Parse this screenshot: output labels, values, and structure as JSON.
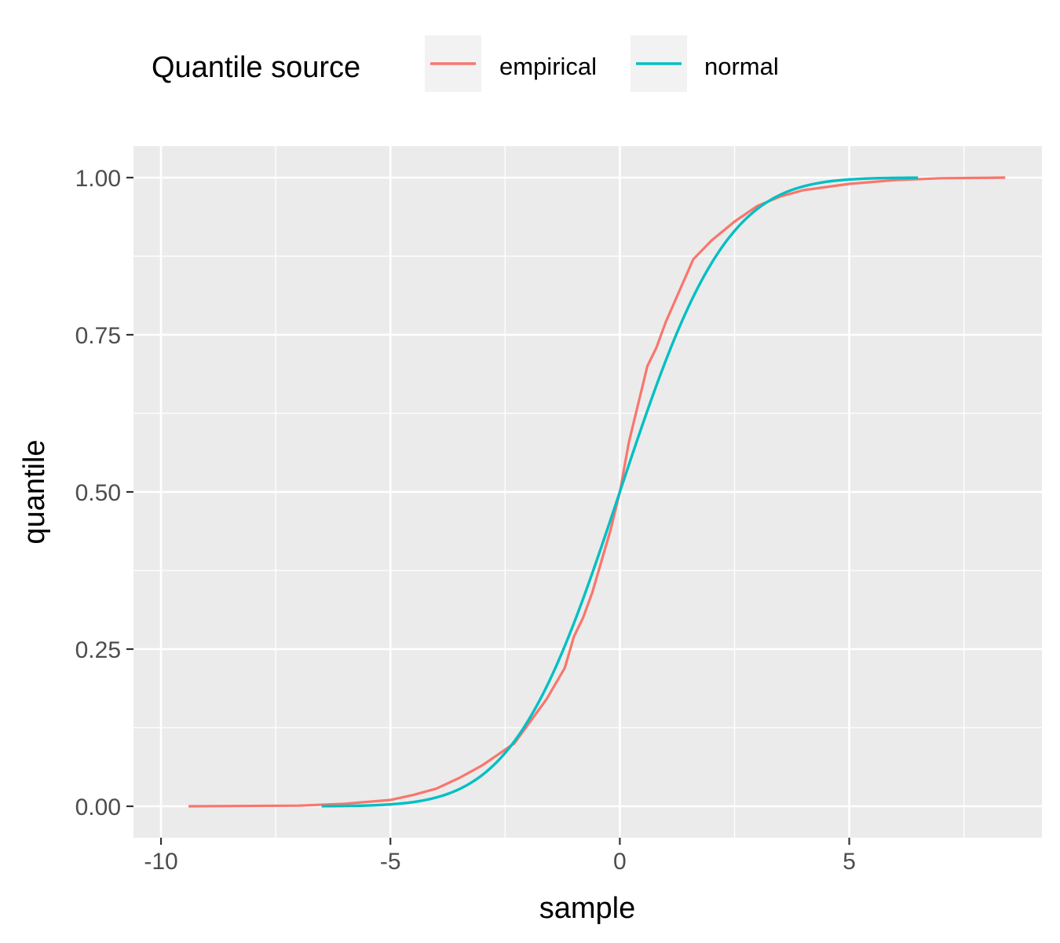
{
  "chart_data": {
    "type": "line",
    "title": "",
    "xlabel": "sample",
    "ylabel": "quantile",
    "xlim": [
      -10.6,
      9.2
    ],
    "ylim": [
      -0.05,
      1.05
    ],
    "x_ticks": [
      -10,
      -5,
      0,
      5
    ],
    "x_tick_labels": [
      "-10",
      "-5",
      "0",
      "5"
    ],
    "y_ticks": [
      0,
      0.25,
      0.5,
      0.75,
      1.0
    ],
    "y_tick_labels": [
      "0.00",
      "0.25",
      "0.50",
      "0.75",
      "1.00"
    ],
    "grid": true,
    "legend": {
      "title": "Quantile source",
      "position": "top",
      "entries": [
        "empirical",
        "normal"
      ]
    },
    "series": [
      {
        "name": "empirical",
        "color": "#F8766D",
        "x": [
          -9.4,
          -7.0,
          -6.0,
          -5.0,
          -4.5,
          -4.0,
          -3.5,
          -3.0,
          -2.6,
          -2.3,
          -2.0,
          -1.6,
          -1.2,
          -1.0,
          -0.8,
          -0.6,
          -0.4,
          -0.2,
          0.0,
          0.2,
          0.4,
          0.6,
          0.8,
          1.0,
          1.3,
          1.6,
          2.0,
          2.5,
          3.0,
          3.5,
          4.0,
          5.0,
          6.0,
          7.0,
          8.4
        ],
        "y": [
          0.0,
          0.001,
          0.004,
          0.01,
          0.018,
          0.028,
          0.045,
          0.065,
          0.085,
          0.1,
          0.13,
          0.17,
          0.22,
          0.27,
          0.3,
          0.34,
          0.39,
          0.44,
          0.5,
          0.58,
          0.64,
          0.7,
          0.73,
          0.77,
          0.82,
          0.87,
          0.9,
          0.93,
          0.955,
          0.97,
          0.98,
          0.99,
          0.996,
          0.999,
          1.0
        ]
      },
      {
        "name": "normal",
        "color": "#00BFC4",
        "mean": 0.0,
        "sd": 1.82,
        "x_range": [
          -6.5,
          6.5
        ]
      }
    ]
  }
}
